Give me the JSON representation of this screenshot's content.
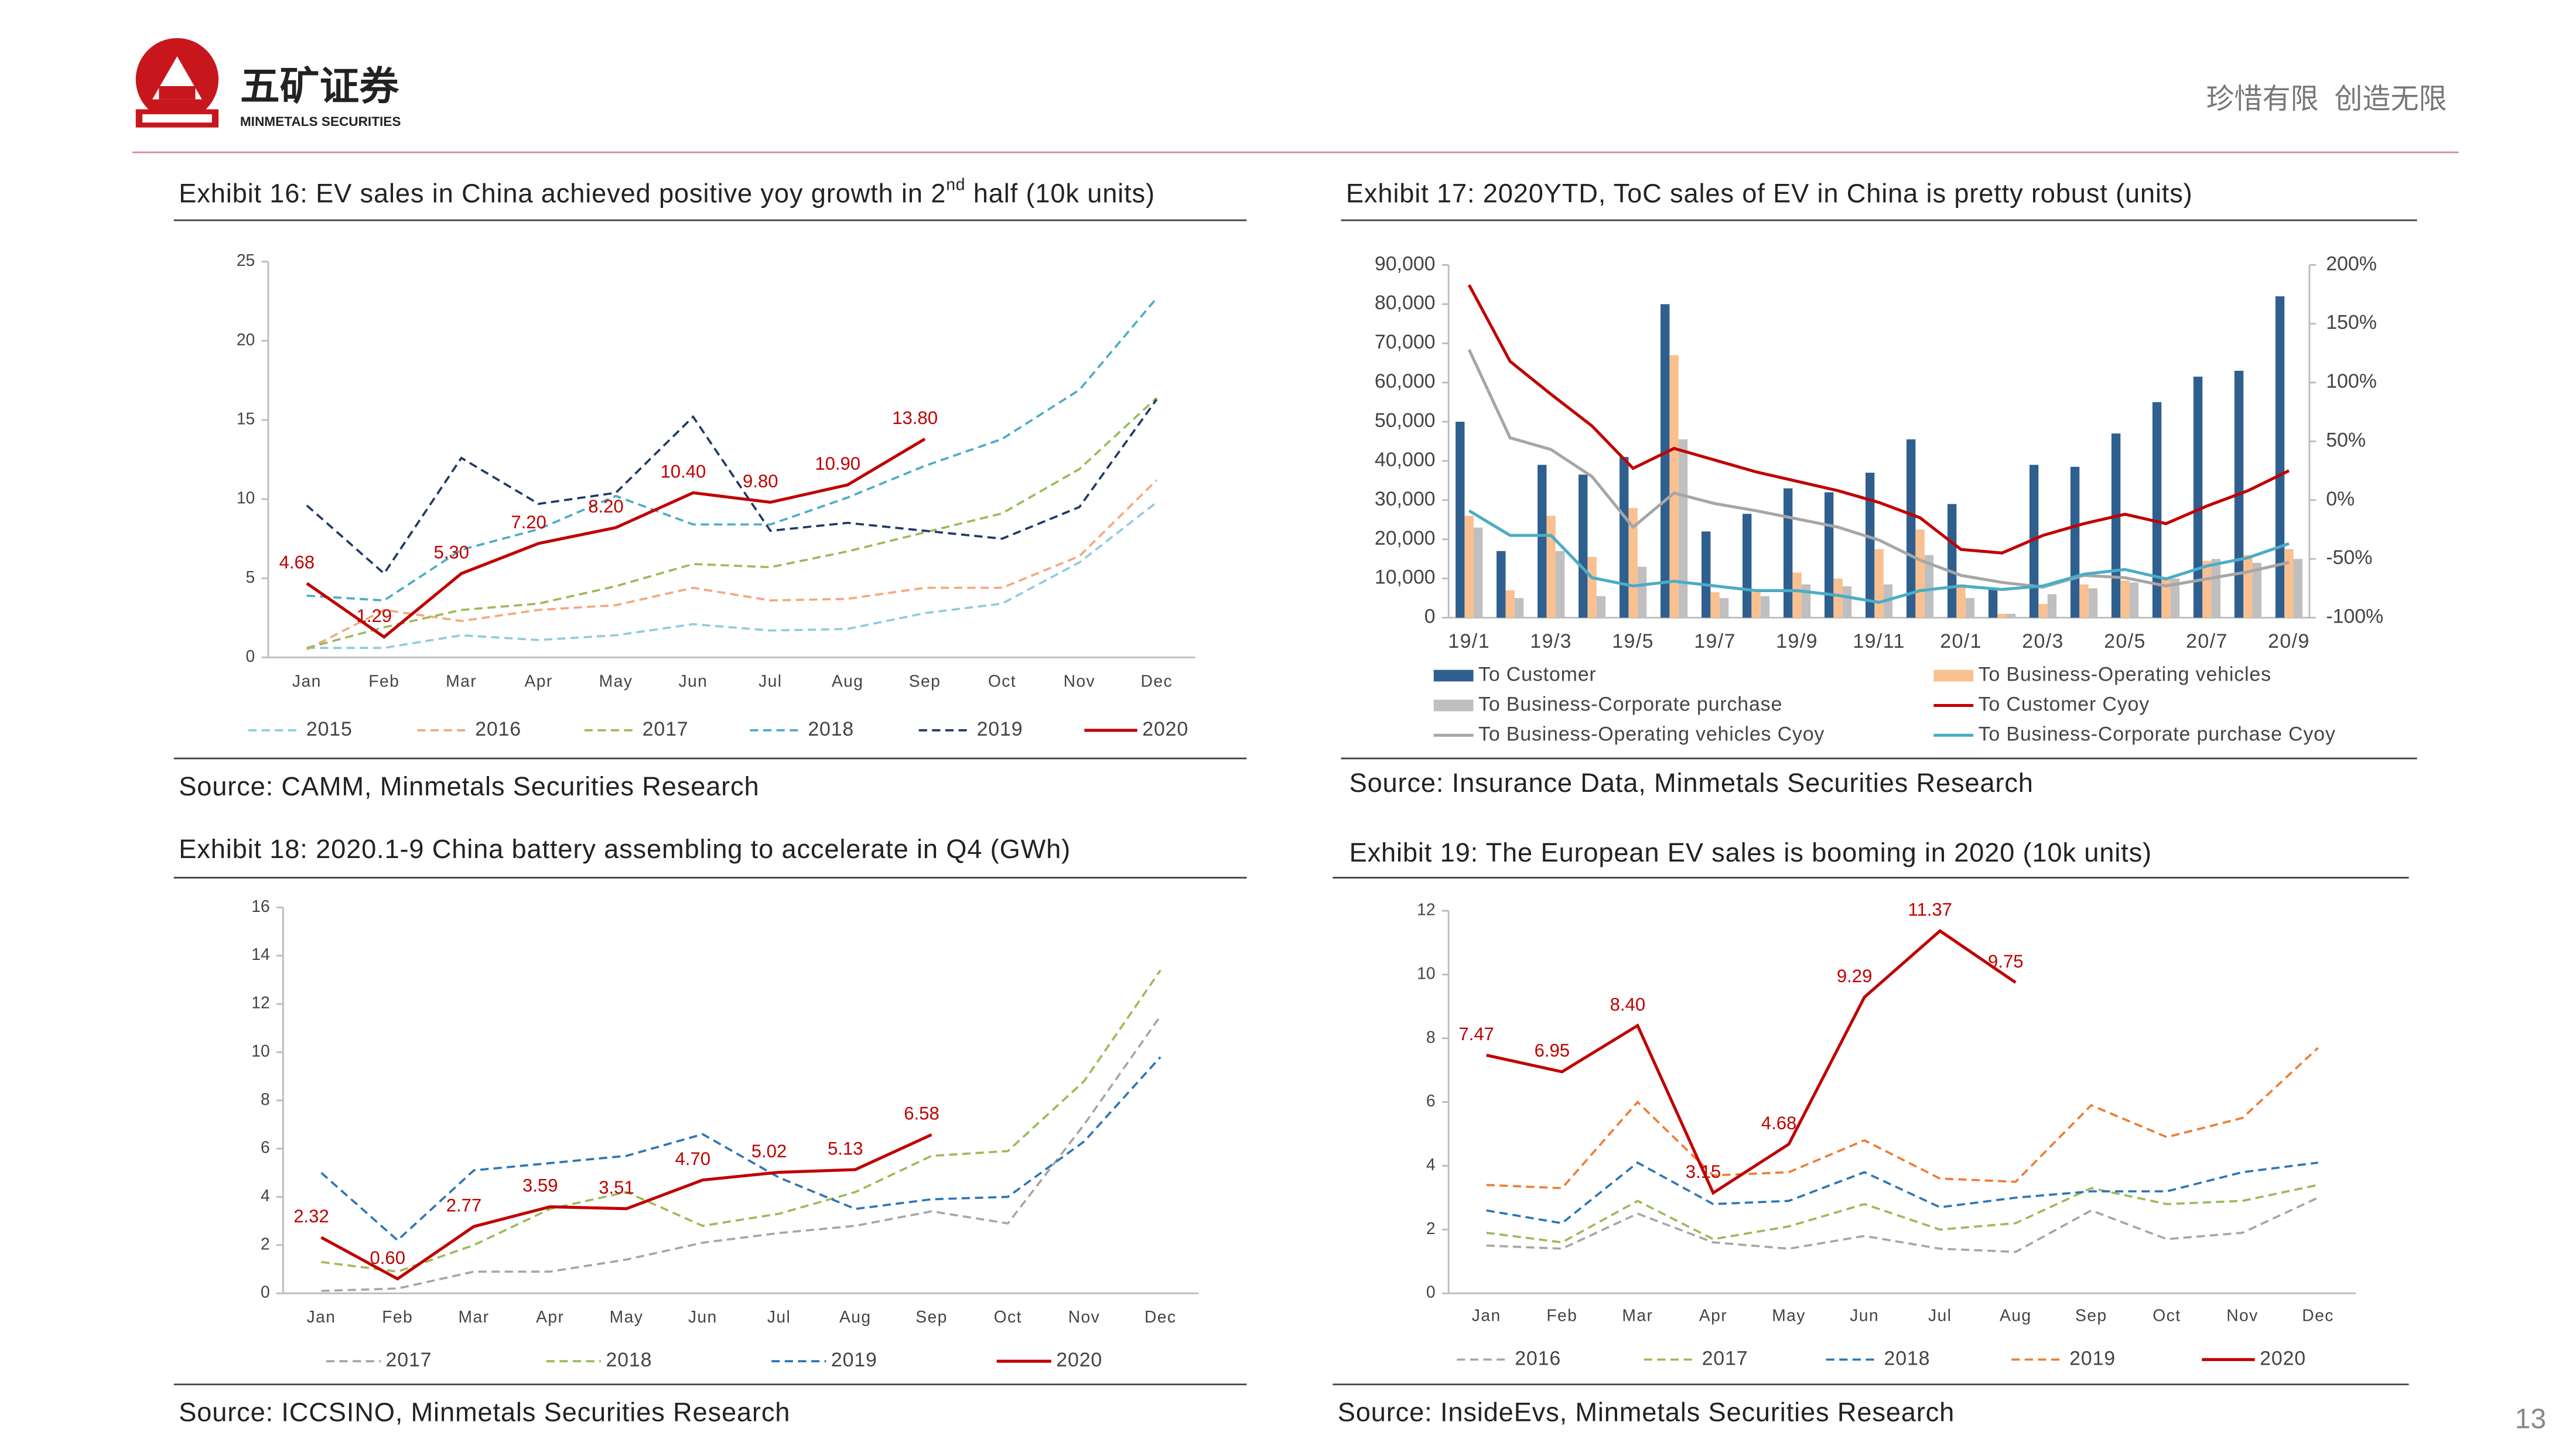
{
  "header": {
    "brand": "五矿证券",
    "brand_en": "MINMETALS SECURITIES",
    "slogan": "珍惜有限  创造无限"
  },
  "page_number": "13",
  "chart_data": [
    {
      "type": "line",
      "title": [
        "Exhibit 16: EV sales in China achieved positive yoy growth in 2",
        "nd",
        " half (10k units)"
      ],
      "source": "Source: CAMM, Minmetals Securities Research",
      "categories": [
        "Jan",
        "Feb",
        "Mar",
        "Apr",
        "May",
        "Jun",
        "Jul",
        "Aug",
        "Sep",
        "Oct",
        "Nov",
        "Dec"
      ],
      "ylim": [
        0,
        25
      ],
      "yticks": [
        0,
        5,
        10,
        15,
        20,
        25
      ],
      "series": [
        {
          "name": "2015",
          "color": "#8fcbe0",
          "dashed": true,
          "values": [
            0.6,
            0.6,
            1.4,
            1.1,
            1.4,
            2.1,
            1.7,
            1.8,
            2.8,
            3.4,
            6.0,
            9.8
          ]
        },
        {
          "name": "2016",
          "color": "#f5a77c",
          "dashed": true,
          "values": [
            0.5,
            3.0,
            2.3,
            3.0,
            3.3,
            4.4,
            3.6,
            3.7,
            4.4,
            4.4,
            6.4,
            11.2
          ]
        },
        {
          "name": "2017",
          "color": "#9bbb59",
          "dashed": true,
          "values": [
            0.6,
            1.9,
            3.0,
            3.4,
            4.5,
            5.9,
            5.7,
            6.7,
            7.9,
            9.1,
            11.9,
            16.4
          ]
        },
        {
          "name": "2018",
          "color": "#4bacc6",
          "dashed": true,
          "values": [
            3.9,
            3.6,
            6.8,
            8.1,
            10.2,
            8.4,
            8.4,
            10.1,
            12.1,
            13.8,
            16.9,
            22.7
          ]
        },
        {
          "name": "2019",
          "color": "#1f3864",
          "dashed": true,
          "values": [
            9.6,
            5.3,
            12.6,
            9.7,
            10.4,
            15.2,
            8.0,
            8.5,
            8.0,
            7.5,
            9.5,
            16.3
          ]
        },
        {
          "name": "2020",
          "color": "#c00000",
          "dashed": false,
          "values": [
            4.68,
            1.29,
            5.3,
            7.2,
            8.2,
            10.4,
            9.8,
            10.9,
            13.8,
            null,
            null,
            null
          ],
          "value_labels": [
            "4.68",
            "1.29",
            "5.30",
            "7.20",
            "8.20",
            "10.40",
            "9.80",
            "10.90",
            "13.80",
            null,
            null,
            null
          ]
        }
      ]
    },
    {
      "type": "bar",
      "title": "Exhibit 17: 2020YTD, ToC sales of EV in China is pretty robust (units)",
      "source": "Source: Insurance Data, Minmetals Securities Research",
      "categories": [
        "19/1",
        null,
        "19/3",
        null,
        "19/5",
        null,
        "19/7",
        null,
        "19/9",
        null,
        "19/11",
        null,
        "20/1",
        null,
        "20/3",
        null,
        "20/5",
        null,
        "20/7",
        null,
        "20/9"
      ],
      "ylim": [
        0,
        90000
      ],
      "yticks": [
        0,
        {
          "value": 10000,
          "label": "10,000"
        },
        {
          "value": 20000,
          "label": "20,000"
        },
        {
          "value": 30000,
          "label": "30,000"
        },
        {
          "value": 40000,
          "label": "40,000"
        },
        {
          "value": 50000,
          "label": "50,000"
        },
        {
          "value": 60000,
          "label": "60,000"
        },
        {
          "value": 70000,
          "label": "70,000"
        },
        {
          "value": 80000,
          "label": "80,000"
        },
        {
          "value": 90000,
          "label": "90,000"
        }
      ],
      "y2lim": [
        -100,
        200
      ],
      "y2ticks": [
        {
          "value": -100,
          "label": "-100%"
        },
        {
          "value": -50,
          "label": "-50%"
        },
        {
          "value": 0,
          "label": "0%"
        },
        {
          "value": 50,
          "label": "50%"
        },
        {
          "value": 100,
          "label": "100%"
        },
        {
          "value": 150,
          "label": "150%"
        },
        {
          "value": 200,
          "label": "200%"
        }
      ],
      "series": [
        {
          "name": "To Customer",
          "color": "#2f5f8f",
          "values": [
            50000,
            17000,
            39000,
            36500,
            41000,
            80000,
            22000,
            26500,
            33000,
            32000,
            37000,
            45500,
            29000,
            7500,
            39000,
            38500,
            47000,
            55000,
            61500,
            63000,
            82000
          ]
        },
        {
          "name": "To Business-Operating vehicles",
          "color": "#fac090",
          "values": [
            26000,
            7000,
            26000,
            15500,
            28000,
            67000,
            6500,
            6500,
            11500,
            10000,
            17500,
            22500,
            8500,
            1000,
            3500,
            8500,
            9500,
            10000,
            14500,
            16000,
            17500
          ]
        },
        {
          "name": "To Business-Corporate purchase",
          "color": "#bfbfbf",
          "values": [
            23000,
            5000,
            17000,
            5500,
            13000,
            45500,
            5000,
            5500,
            8500,
            8000,
            8500,
            16000,
            5000,
            1000,
            6000,
            7500,
            9000,
            10000,
            15000,
            14000,
            15000
          ]
        },
        {
          "name": "To Customer Cyoy",
          "color": "#c00000",
          "axis": "y2",
          "dashed": false,
          "values": [
            183,
            118,
            90,
            63,
            27,
            44,
            34,
            24,
            16,
            8,
            -2,
            -15,
            -42,
            -45,
            -30,
            -20,
            -12,
            -20,
            -5,
            8,
            25
          ]
        },
        {
          "name": "To Business-Operating vehicles Cyoy",
          "color": "#a6a6a6",
          "axis": "y2",
          "dashed": false,
          "values": [
            128,
            53,
            43,
            20,
            -23,
            6,
            -3,
            -9,
            -16,
            -23,
            -34,
            -51,
            -64,
            -70,
            -74,
            -64,
            -66,
            -73,
            -67,
            -61,
            -53
          ]
        },
        {
          "name": "To Business-Corporate purchase Cyoy",
          "color": "#4bacc6",
          "axis": "y2",
          "dashed": false,
          "values": [
            -9,
            -30,
            -30,
            -66,
            -73,
            -69,
            -73,
            -77,
            -77,
            -81,
            -87,
            -77,
            -73,
            -76,
            -73,
            -63,
            -59,
            -67,
            -56,
            -49,
            -37
          ]
        }
      ]
    },
    {
      "type": "line",
      "title": "Exhibit 18: 2020.1-9 China battery assembling to accelerate in Q4 (GWh)",
      "source": "Source: ICCSINO, Minmetals Securities Research",
      "categories": [
        "Jan",
        "Feb",
        "Mar",
        "Apr",
        "May",
        "Jun",
        "Jul",
        "Aug",
        "Sep",
        "Oct",
        "Nov",
        "Dec"
      ],
      "ylim": [
        0,
        16
      ],
      "yticks": [
        0,
        2,
        4,
        6,
        8,
        10,
        12,
        14,
        16
      ],
      "series": [
        {
          "name": "2017",
          "color": "#a6a6a6",
          "dashed": true,
          "values": [
            0.1,
            0.2,
            0.9,
            0.9,
            1.4,
            2.1,
            2.5,
            2.8,
            3.4,
            2.9,
            7.0,
            11.5
          ]
        },
        {
          "name": "2018",
          "color": "#9bbb59",
          "dashed": true,
          "values": [
            1.3,
            0.9,
            2.0,
            3.5,
            4.2,
            2.8,
            3.3,
            4.2,
            5.7,
            5.9,
            8.8,
            13.4
          ]
        },
        {
          "name": "2019",
          "color": "#2e75b6",
          "dashed": true,
          "values": [
            5.0,
            2.2,
            5.1,
            5.4,
            5.7,
            6.6,
            4.8,
            3.5,
            3.9,
            4.0,
            6.3,
            9.8
          ]
        },
        {
          "name": "2020",
          "color": "#c00000",
          "dashed": false,
          "values": [
            2.32,
            0.6,
            2.77,
            3.59,
            3.51,
            4.7,
            5.02,
            5.13,
            6.58,
            null,
            null,
            null
          ],
          "value_labels": [
            "2.32",
            "0.60",
            "2.77",
            "3.59",
            "3.51",
            "4.70",
            "5.02",
            "5.13",
            "6.58",
            null,
            null,
            null
          ]
        }
      ]
    },
    {
      "type": "line",
      "title": "Exhibit 19: The European EV sales is booming in 2020 (10k units)",
      "source": "Source: InsideEvs, Minmetals Securities Research",
      "categories": [
        "Jan",
        "Feb",
        "Mar",
        "Apr",
        "May",
        "Jun",
        "Jul",
        "Aug",
        "Sep",
        "Oct",
        "Nov",
        "Dec"
      ],
      "ylim": [
        0,
        12
      ],
      "yticks": [
        0,
        2,
        4,
        6,
        8,
        10,
        12
      ],
      "series": [
        {
          "name": "2016",
          "color": "#a6a6a6",
          "dashed": true,
          "values": [
            1.5,
            1.4,
            2.5,
            1.6,
            1.4,
            1.8,
            1.4,
            1.3,
            2.6,
            1.7,
            1.9,
            3.0
          ]
        },
        {
          "name": "2017",
          "color": "#9bbb59",
          "dashed": true,
          "values": [
            1.9,
            1.6,
            2.9,
            1.7,
            2.1,
            2.8,
            2.0,
            2.2,
            3.3,
            2.8,
            2.9,
            3.4
          ]
        },
        {
          "name": "2018",
          "color": "#2e75b6",
          "dashed": true,
          "values": [
            2.6,
            2.2,
            4.1,
            2.8,
            2.9,
            3.8,
            2.7,
            3.0,
            3.2,
            3.2,
            3.8,
            4.1
          ]
        },
        {
          "name": "2019",
          "color": "#ed7d31",
          "dashed": true,
          "values": [
            3.4,
            3.3,
            6.0,
            3.7,
            3.8,
            4.8,
            3.6,
            3.5,
            5.9,
            4.9,
            5.5,
            7.7
          ]
        },
        {
          "name": "2020",
          "color": "#c00000",
          "dashed": false,
          "values": [
            7.47,
            6.95,
            8.4,
            3.15,
            4.68,
            9.29,
            11.37,
            9.75,
            null,
            null,
            null,
            null
          ],
          "value_labels": [
            "7.47",
            "6.95",
            "8.40",
            "3.15",
            "4.68",
            "9.29",
            "11.37",
            "9.75",
            null,
            null,
            null,
            null
          ]
        }
      ]
    }
  ]
}
